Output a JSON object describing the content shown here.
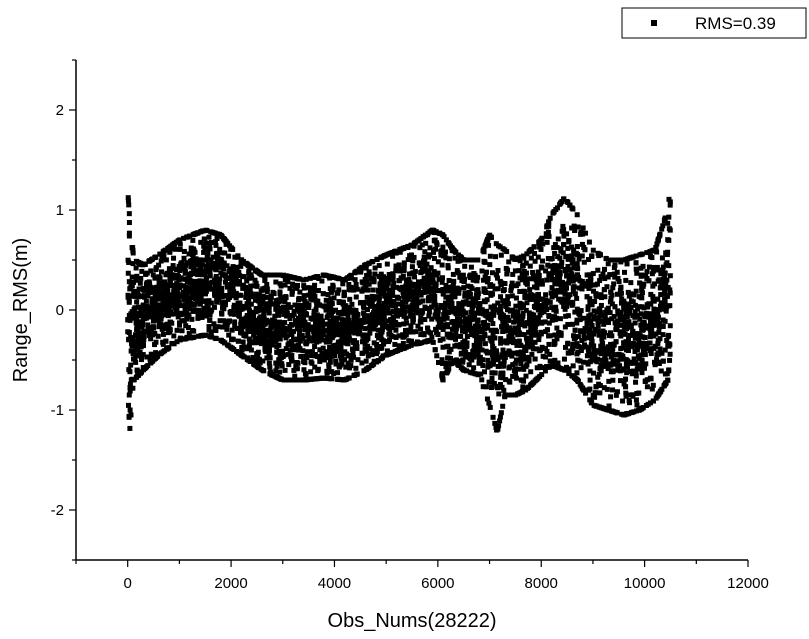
{
  "chart_data": {
    "type": "scatter",
    "title": "",
    "xlabel": "Obs_Nums(28222)",
    "ylabel": "Range_RMS(m)",
    "xlim": [
      -1000,
      12000
    ],
    "ylim": [
      -2.5,
      2.5
    ],
    "x_ticks": [
      0,
      2000,
      4000,
      6000,
      8000,
      10000,
      12000
    ],
    "y_ticks": [
      -2,
      -1,
      0,
      1,
      2
    ],
    "x_tick_labels": [
      "0",
      "2000",
      "4000",
      "6000",
      "8000",
      "10000",
      "12000"
    ],
    "y_tick_labels": [
      "-2",
      "-1",
      "0",
      "1",
      "2"
    ],
    "grid": false,
    "legend_position": "top-right",
    "series": [
      {
        "name": "RMS=0.39",
        "marker": "square",
        "color": "#000000",
        "envelope": {
          "x": [
            0,
            40,
            120,
            300,
            600,
            1000,
            1500,
            1800,
            2200,
            2600,
            3000,
            3400,
            3800,
            4200,
            4600,
            5000,
            5500,
            5900,
            6100,
            6300,
            6500,
            6800,
            7000,
            7150,
            7300,
            7500,
            7700,
            8000,
            8200,
            8450,
            8700,
            9000,
            9300,
            9600,
            9900,
            10200,
            10450,
            10500
          ],
          "upper": [
            1.2,
            0.9,
            0.5,
            0.45,
            0.55,
            0.7,
            0.8,
            0.75,
            0.5,
            0.35,
            0.35,
            0.3,
            0.35,
            0.3,
            0.45,
            0.55,
            0.65,
            0.8,
            0.75,
            0.6,
            0.5,
            0.5,
            0.75,
            0.65,
            0.6,
            0.5,
            0.55,
            0.7,
            0.95,
            1.12,
            0.95,
            0.6,
            0.5,
            0.5,
            0.55,
            0.6,
            1.0,
            1.25
          ],
          "lower": [
            -0.8,
            -1.2,
            -0.7,
            -0.6,
            -0.45,
            -0.3,
            -0.25,
            -0.3,
            -0.45,
            -0.6,
            -0.7,
            -0.7,
            -0.68,
            -0.7,
            -0.6,
            -0.45,
            -0.35,
            -0.3,
            -0.7,
            -0.5,
            -0.6,
            -0.65,
            -0.95,
            -1.22,
            -0.85,
            -0.85,
            -0.8,
            -0.65,
            -0.55,
            -0.6,
            -0.7,
            -0.95,
            -1.0,
            -1.05,
            -1.0,
            -0.9,
            -0.7,
            -0.4
          ]
        }
      }
    ]
  }
}
